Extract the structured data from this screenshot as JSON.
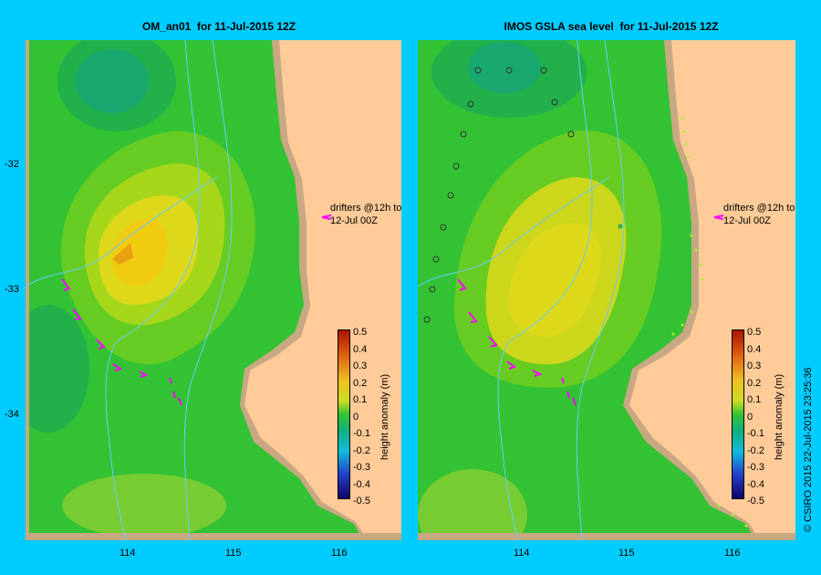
{
  "panels": [
    {
      "title": "OM_an01  for 11-Jul-2015 12Z",
      "drifter_note_line1": "drifters @12h to",
      "drifter_note_line2": "12-Jul 00Z"
    },
    {
      "title": "IMOS GSLA sea level  for 11-Jul-2015 12Z",
      "drifter_note_line1": "drifters @12h to",
      "drifter_note_line2": "12-Jul 00Z"
    }
  ],
  "axes": {
    "lat_ticks": [
      "-32",
      "-33",
      "-34"
    ],
    "lon_ticks": [
      "114",
      "115",
      "116"
    ]
  },
  "colorbar": {
    "label": "height anomaly (m)",
    "ticks": [
      "0.5",
      "0.4",
      "0.3",
      "0.2",
      "0.1",
      "0",
      "-0.1",
      "-0.2",
      "-0.3",
      "-0.4",
      "-0.5"
    ]
  },
  "credit": "© CSIRO 2015   22-Jul-2015 23:25:36",
  "colors": {
    "background": "#00ccff",
    "land": "#ffcc99",
    "shelf": "#c8a882",
    "drifter_track": "#ff00ff",
    "bathymetry": "#66ccff"
  }
}
